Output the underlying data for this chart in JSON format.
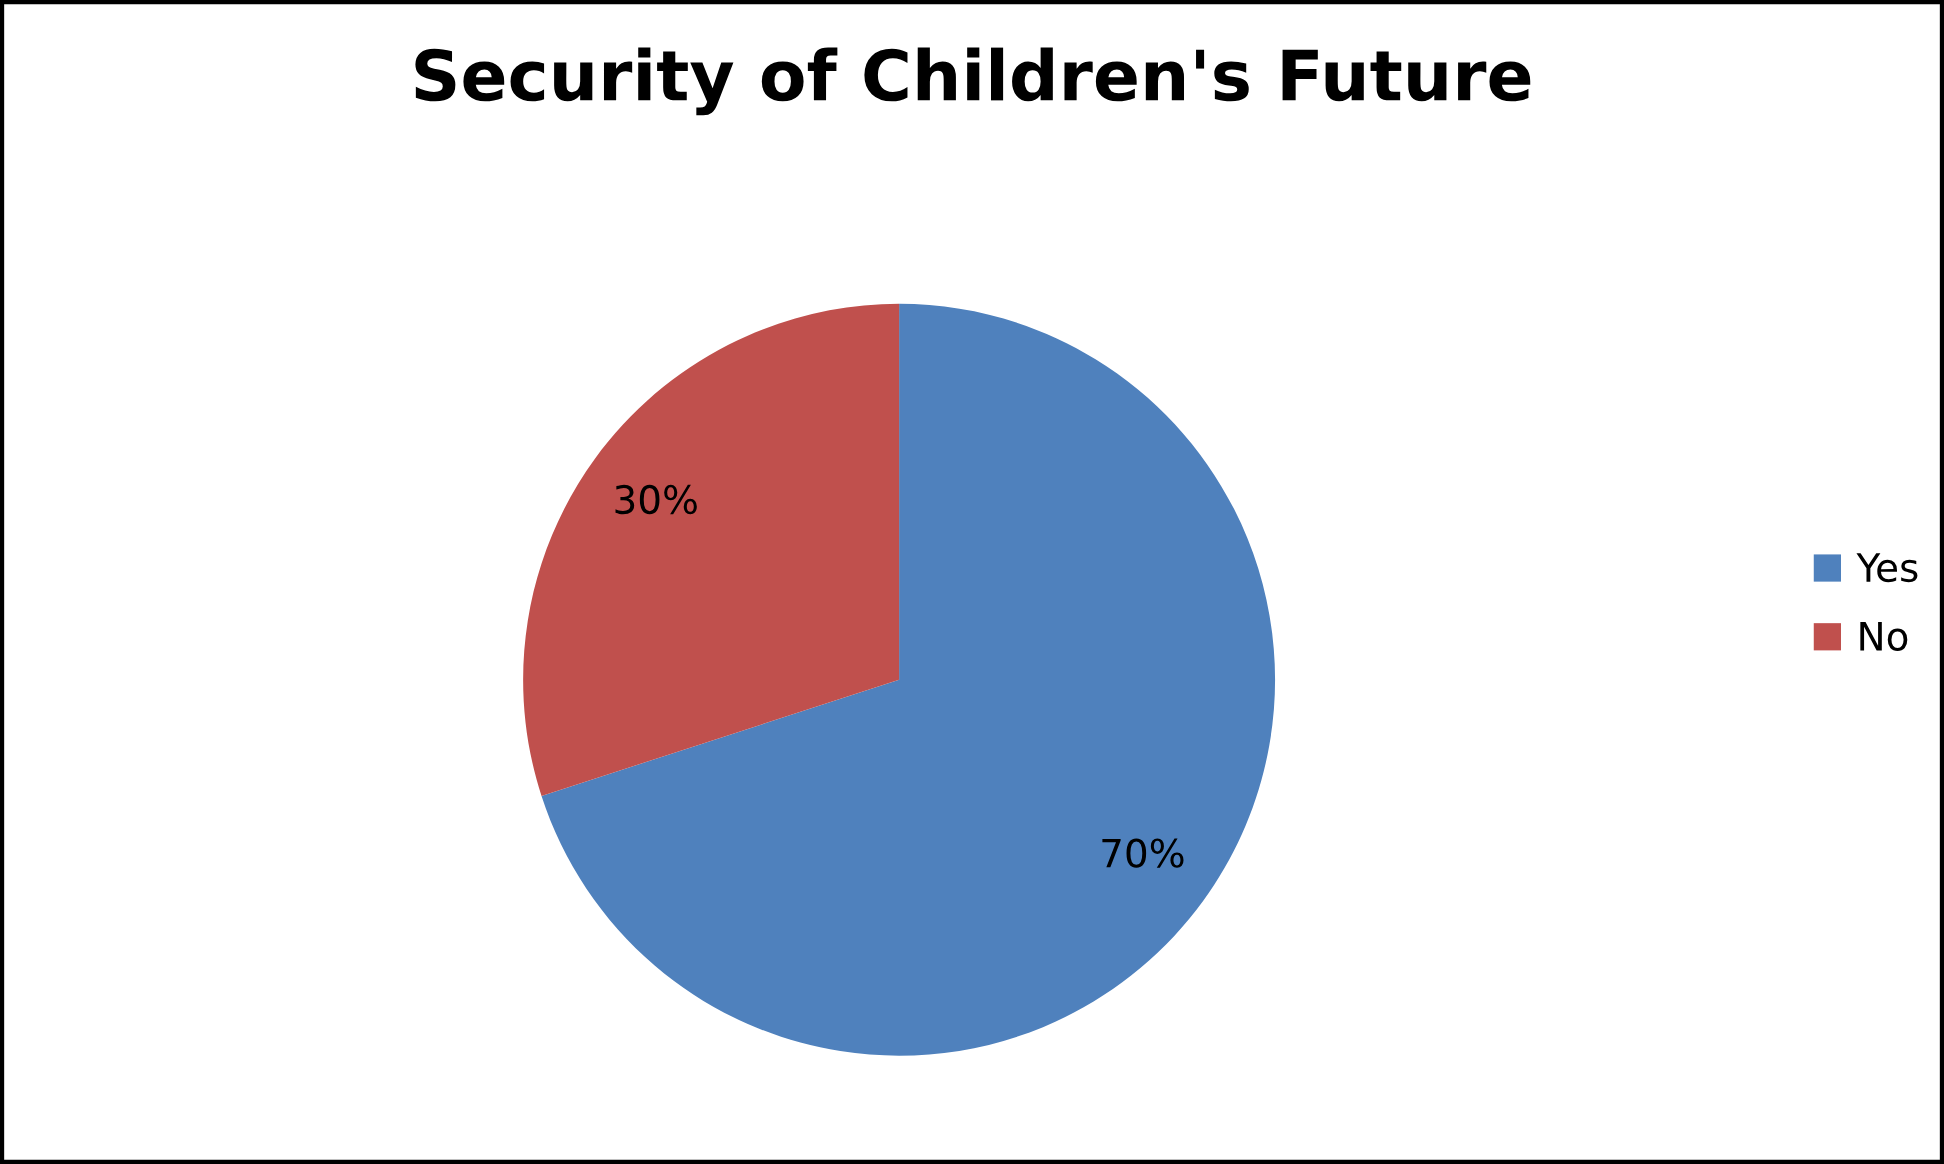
{
  "chart_data": {
    "type": "pie",
    "title": "Security of Children's Future",
    "categories": [
      "Yes",
      "No"
    ],
    "values": [
      70,
      30
    ],
    "colors": [
      "#4f81bd",
      "#c0504d"
    ],
    "value_labels": [
      "70%",
      "30%"
    ],
    "legend": "right"
  }
}
